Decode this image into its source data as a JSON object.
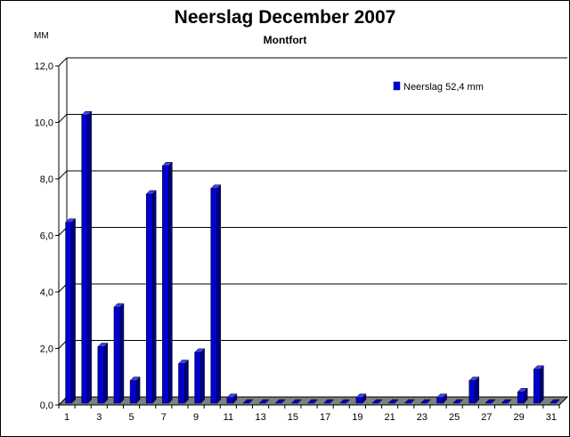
{
  "chart_data": {
    "type": "bar",
    "title": "Neerslag December 2007",
    "subtitle": "Montfort",
    "ylabel": "MM",
    "ylim": [
      0,
      12
    ],
    "yticks": [
      "0,0",
      "2,0",
      "4,0",
      "6,0",
      "8,0",
      "10,0",
      "12,0"
    ],
    "categories": [
      "1",
      "2",
      "3",
      "4",
      "5",
      "6",
      "7",
      "8",
      "9",
      "10",
      "11",
      "12",
      "13",
      "14",
      "15",
      "16",
      "17",
      "18",
      "19",
      "20",
      "21",
      "22",
      "23",
      "24",
      "25",
      "26",
      "27",
      "28",
      "29",
      "30",
      "31"
    ],
    "xtick_labels": [
      "1",
      "3",
      "5",
      "7",
      "9",
      "11",
      "13",
      "15",
      "17",
      "19",
      "21",
      "23",
      "25",
      "27",
      "29",
      "31"
    ],
    "series": [
      {
        "name": "Neerslag 52,4 mm",
        "values": [
          6.4,
          10.2,
          2.0,
          3.4,
          0.8,
          7.4,
          8.4,
          1.4,
          1.8,
          7.6,
          0.2,
          0,
          0,
          0,
          0,
          0,
          0,
          0,
          0.2,
          0,
          0,
          0,
          0,
          0.2,
          0,
          0.8,
          0,
          0,
          0.4,
          1.2,
          0
        ]
      }
    ],
    "grid": true,
    "legend_position": "top-right",
    "colors": {
      "bar": "#0000d0",
      "bar_side": "#000080",
      "bar_top": "#4040ff",
      "floor": "#808080"
    }
  }
}
